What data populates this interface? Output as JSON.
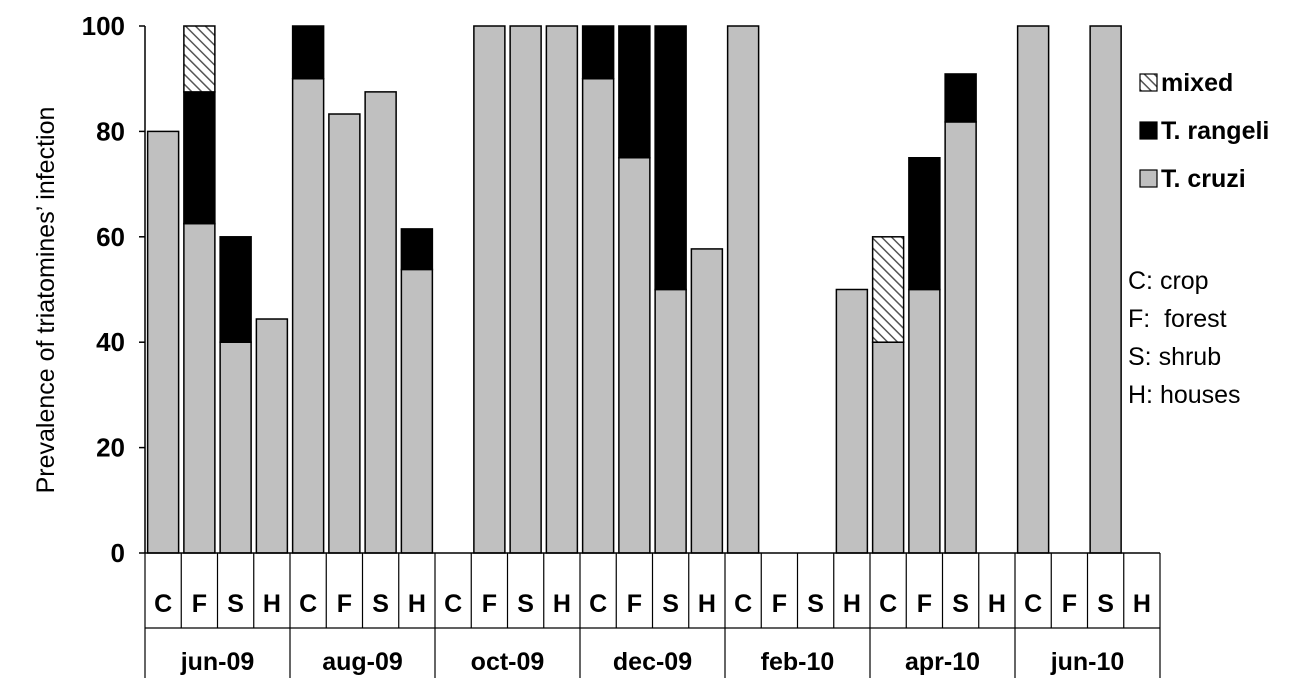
{
  "chart_data": {
    "type": "bar",
    "stacked": true,
    "ylabel": "Prevalence of triatomines’ infection",
    "ylim": [
      0,
      100
    ],
    "yticks": [
      0,
      20,
      40,
      60,
      80,
      100
    ],
    "groups": [
      {
        "label": "jun-09",
        "sites": [
          "C",
          "F",
          "S",
          "H"
        ]
      },
      {
        "label": "aug-09",
        "sites": [
          "C",
          "F",
          "S",
          "H"
        ]
      },
      {
        "label": "oct-09",
        "sites": [
          "C",
          "F",
          "S",
          "H"
        ]
      },
      {
        "label": "dec-09",
        "sites": [
          "C",
          "F",
          "S",
          "H"
        ]
      },
      {
        "label": "feb-10",
        "sites": [
          "C",
          "F",
          "S",
          "H"
        ]
      },
      {
        "label": "apr-10",
        "sites": [
          "C",
          "F",
          "S",
          "H"
        ]
      },
      {
        "label": "jun-10",
        "sites": [
          "C",
          "F",
          "S",
          "H"
        ]
      }
    ],
    "series": [
      {
        "name": "T. cruzi",
        "color": "#c0c0c0",
        "pattern": "solid",
        "values": [
          80,
          62.5,
          40,
          44.4,
          90,
          83.3,
          87.5,
          53.8,
          0,
          100,
          100,
          100,
          90,
          75,
          50,
          57.7,
          100,
          0,
          0,
          50,
          40,
          50,
          81.8,
          0,
          100,
          0,
          100,
          0
        ]
      },
      {
        "name": "T. rangeli",
        "color": "#000000",
        "pattern": "solid",
        "values": [
          0,
          25,
          20,
          0,
          10,
          0,
          0,
          7.7,
          0,
          0,
          0,
          0,
          10,
          25,
          50,
          0,
          0,
          0,
          0,
          0,
          0,
          25,
          9.1,
          0,
          0,
          0,
          0,
          0
        ]
      },
      {
        "name": "mixed",
        "color": "#888888",
        "pattern": "hatch",
        "values": [
          0,
          12.5,
          0,
          0,
          0,
          0,
          0,
          0,
          0,
          0,
          0,
          0,
          0,
          0,
          0,
          0,
          0,
          0,
          0,
          0,
          20,
          0,
          0,
          0,
          0,
          0,
          0,
          0
        ]
      }
    ],
    "legend_order": [
      "mixed",
      "T. rangeli",
      "T. cruzi"
    ],
    "legend_position": "right",
    "site_key": [
      "C: crop",
      "F:  forest",
      "S: shrub",
      "H: houses"
    ]
  }
}
